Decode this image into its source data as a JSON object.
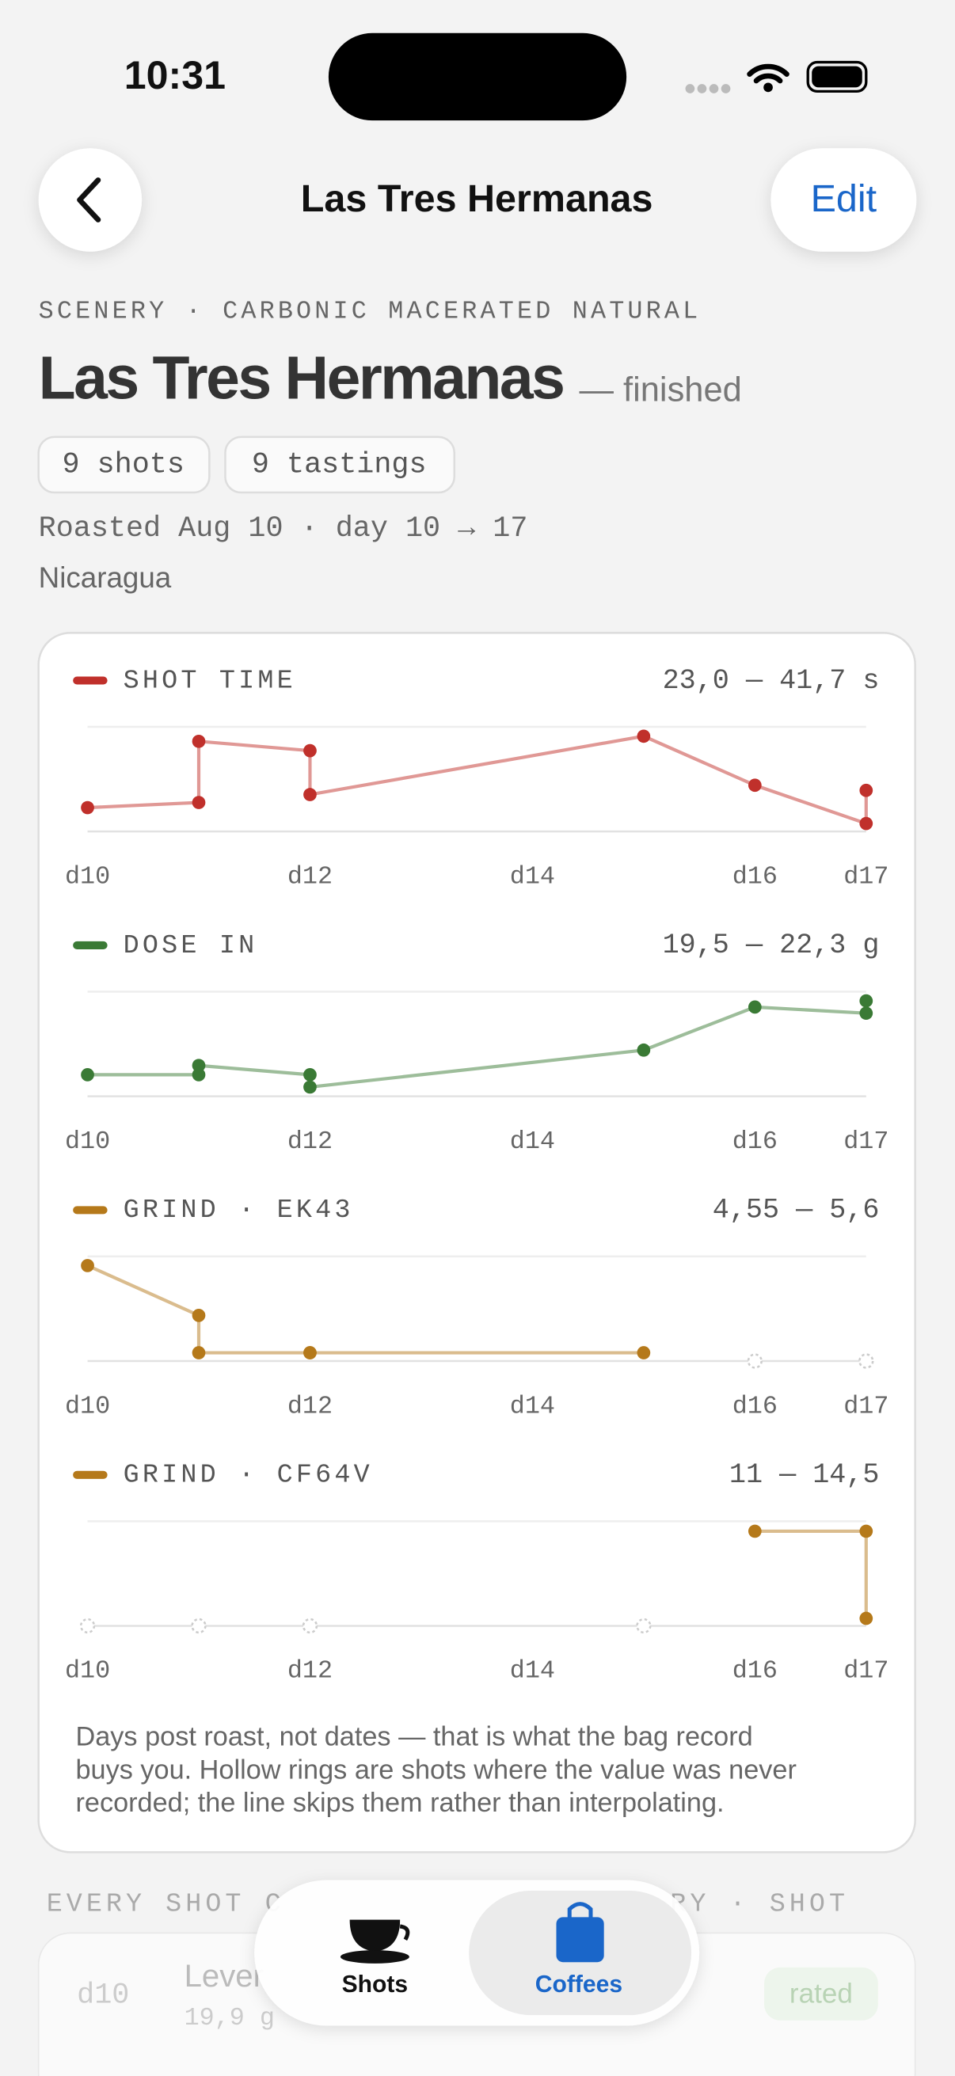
{
  "status_bar": {
    "time": "10:31"
  },
  "nav": {
    "title": "Las Tres Hermanas",
    "edit": "Edit"
  },
  "header": {
    "kicker": "SCENERY · CARBONIC MACERATED NATURAL",
    "title": "Las Tres Hermanas",
    "state": "— finished",
    "pills": [
      "9 shots",
      "9 tastings"
    ],
    "roasted": "Roasted Aug 10 · day 10 → 17",
    "origin": "Nicaragua"
  },
  "chart_data": [
    {
      "type": "line",
      "title": "SHOT TIME",
      "range_label": "23,0 — 41,7 s",
      "x": [
        10,
        11,
        11,
        12,
        12,
        15,
        16,
        17,
        17
      ],
      "series": [
        {
          "color": "#c0302b",
          "values": [
            26.4,
            27.5,
            40.6,
            38.6,
            29.2,
            41.7,
            31.2,
            23.0,
            30.1
          ]
        }
      ],
      "xlim": [
        10,
        17
      ],
      "ylim": [
        21.3,
        43.7
      ],
      "xticks": [
        {
          "value": 10,
          "label": "d10"
        },
        {
          "value": 12,
          "label": "d12"
        },
        {
          "value": 14,
          "label": "d14"
        },
        {
          "value": 16,
          "label": "d16"
        },
        {
          "value": 17,
          "label": "d17"
        }
      ]
    },
    {
      "type": "line",
      "title": "DOSE IN",
      "range_label": "19,5 — 22,3 g",
      "x": [
        10,
        11,
        11,
        12,
        12,
        15,
        16,
        17,
        17
      ],
      "series": [
        {
          "color": "#3a7a35",
          "values": [
            19.9,
            19.9,
            20.2,
            19.9,
            19.5,
            20.7,
            22.1,
            21.9,
            22.3
          ]
        }
      ],
      "xlim": [
        10,
        17
      ],
      "ylim": [
        19.2,
        22.6
      ],
      "xticks": [
        {
          "value": 10,
          "label": "d10"
        },
        {
          "value": 12,
          "label": "d12"
        },
        {
          "value": 14,
          "label": "d14"
        },
        {
          "value": 16,
          "label": "d16"
        },
        {
          "value": 17,
          "label": "d17"
        }
      ]
    },
    {
      "type": "line",
      "title": "GRIND · EK43",
      "range_label": "4,55 — 5,6",
      "x": [
        10,
        11,
        11,
        12,
        12,
        15,
        16,
        17,
        17
      ],
      "series": [
        {
          "color": "#b5791a",
          "values": [
            5.6,
            5.0,
            4.55,
            4.55,
            4.55,
            4.55,
            null,
            null,
            null
          ]
        }
      ],
      "xlim": [
        10,
        17
      ],
      "ylim": [
        4.45,
        5.71
      ],
      "xticks": [
        {
          "value": 10,
          "label": "d10"
        },
        {
          "value": 12,
          "label": "d12"
        },
        {
          "value": 14,
          "label": "d14"
        },
        {
          "value": 16,
          "label": "d16"
        },
        {
          "value": 17,
          "label": "d17"
        }
      ]
    },
    {
      "type": "line",
      "title": "GRIND · CF64V",
      "range_label": "11 — 14,5",
      "x": [
        10,
        11,
        11,
        12,
        12,
        15,
        16,
        17,
        17
      ],
      "series": [
        {
          "color": "#b5791a",
          "values": [
            null,
            null,
            null,
            null,
            null,
            null,
            14.5,
            14.5,
            11
          ]
        }
      ],
      "xlim": [
        10,
        17
      ],
      "ylim": [
        10.7,
        14.9
      ],
      "xticks": [
        {
          "value": 10,
          "label": "d10"
        },
        {
          "value": 12,
          "label": "d12"
        },
        {
          "value": 14,
          "label": "d14"
        },
        {
          "value": 16,
          "label": "d16"
        },
        {
          "value": 17,
          "label": "d17"
        }
      ]
    }
  ],
  "note": [
    "Days post roast, not dates — that is what the bag record",
    "buys you. Hollow rings are shots where the value was never",
    "recorded; the line skips them rather than interpolating."
  ],
  "list": {
    "header_left": "EVERY SHOT C",
    "header_right": "RY · SHOT",
    "rows": [
      {
        "day": "d10",
        "name": "Lever",
        "detail": "19,9 g",
        "status": "rated"
      }
    ]
  },
  "tabs": [
    "Shots",
    "Coffees"
  ]
}
